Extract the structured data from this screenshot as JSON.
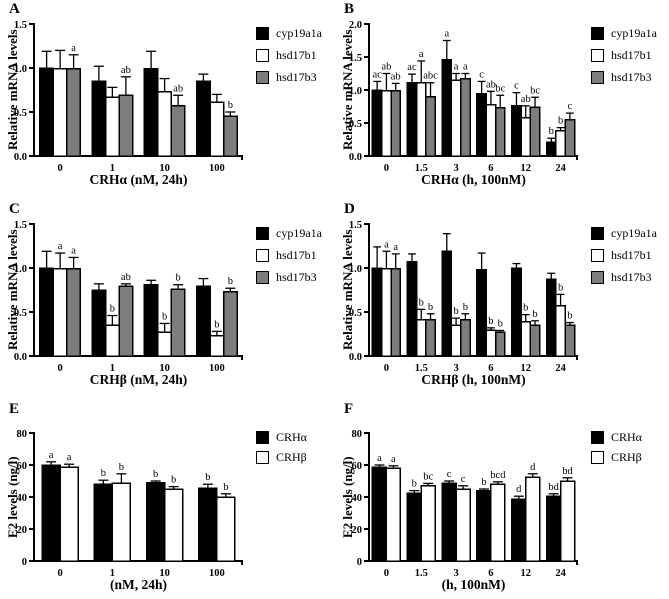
{
  "figure": {
    "background": "#ffffff"
  },
  "colors": {
    "bar_black": "#000000",
    "bar_white": "#ffffff",
    "bar_gray": "#7d7d7d",
    "axis": "#000000"
  },
  "chart_data": [
    {
      "panel": "A",
      "type": "bar",
      "xlabel": "CRHα (nM, 24h)",
      "ylabel": "Relative mRNA levels",
      "ylim": [
        0,
        1.5
      ],
      "yticks": [
        "0.0",
        "0.5",
        "1.0",
        "1.5"
      ],
      "categories": [
        "0",
        "1",
        "10",
        "100"
      ],
      "legend": [
        "cyp19a1a",
        "hsd17b1",
        "hsd17b3"
      ],
      "legend_position": "right",
      "series": [
        {
          "name": "cyp19a1a",
          "fill": "#000000",
          "values": [
            1.0,
            0.85,
            0.99,
            0.85
          ],
          "errors": [
            0.19,
            0.17,
            0.2,
            0.08
          ],
          "letters": [
            "",
            "",
            "",
            ""
          ]
        },
        {
          "name": "hsd17b1",
          "fill": "#ffffff",
          "values": [
            0.99,
            0.67,
            0.73,
            0.61
          ],
          "errors": [
            0.21,
            0.11,
            0.15,
            0.09
          ],
          "letters": [
            "",
            "",
            "",
            ""
          ]
        },
        {
          "name": "hsd17b3",
          "fill": "#7d7d7d",
          "values": [
            0.99,
            0.69,
            0.57,
            0.45
          ],
          "errors": [
            0.16,
            0.21,
            0.12,
            0.05
          ],
          "letters": [
            "a",
            "ab",
            "ab",
            "b"
          ]
        }
      ]
    },
    {
      "panel": "B",
      "type": "bar",
      "xlabel": "CRHα (h, 100nM)",
      "ylabel": "Relative mRNA levels",
      "ylim": [
        0,
        2.0
      ],
      "yticks": [
        "0.0",
        "0.5",
        "1.0",
        "1.5",
        "2.0"
      ],
      "categories": [
        "0",
        "1.5",
        "3",
        "6",
        "12",
        "24"
      ],
      "legend": [
        "cyp19a1a",
        "hsd17b1",
        "hsd17b3"
      ],
      "legend_position": "right",
      "series": [
        {
          "name": "cyp19a1a",
          "fill": "#000000",
          "values": [
            1.0,
            1.11,
            1.46,
            0.94,
            0.76,
            0.21
          ],
          "errors": [
            0.13,
            0.13,
            0.29,
            0.19,
            0.2,
            0.06
          ],
          "letters": [
            "ac",
            "ac",
            "a",
            "c",
            "c",
            "b"
          ]
        },
        {
          "name": "hsd17b1",
          "fill": "#ffffff",
          "values": [
            0.99,
            1.11,
            1.15,
            0.78,
            0.58,
            0.38
          ],
          "errors": [
            0.26,
            0.33,
            0.1,
            0.2,
            0.18,
            0.05
          ],
          "letters": [
            "ab",
            "a",
            "a",
            "ab",
            "ab",
            "b"
          ]
        },
        {
          "name": "hsd17b3",
          "fill": "#7d7d7d",
          "values": [
            0.99,
            0.9,
            1.17,
            0.73,
            0.74,
            0.55
          ],
          "errors": [
            0.11,
            0.21,
            0.08,
            0.19,
            0.15,
            0.1
          ],
          "letters": [
            "ab",
            "abc",
            "a",
            "bc",
            "bc",
            "c"
          ]
        }
      ]
    },
    {
      "panel": "C",
      "type": "bar",
      "xlabel": "CRHβ (nM, 24h)",
      "ylabel": "Relative mRNA levels",
      "ylim": [
        0,
        1.5
      ],
      "yticks": [
        "0.0",
        "0.5",
        "1.0",
        "1.5"
      ],
      "categories": [
        "0",
        "1",
        "10",
        "100"
      ],
      "legend": [
        "cyp19a1a",
        "hsd17b1",
        "hsd17b3"
      ],
      "legend_position": "right",
      "series": [
        {
          "name": "cyp19a1a",
          "fill": "#000000",
          "values": [
            1.0,
            0.75,
            0.81,
            0.79
          ],
          "errors": [
            0.19,
            0.07,
            0.05,
            0.09
          ],
          "letters": [
            "",
            "",
            "",
            ""
          ]
        },
        {
          "name": "hsd17b1",
          "fill": "#ffffff",
          "values": [
            0.99,
            0.35,
            0.27,
            0.23
          ],
          "errors": [
            0.18,
            0.11,
            0.1,
            0.05
          ],
          "letters": [
            "a",
            "b",
            "b",
            "b"
          ]
        },
        {
          "name": "hsd17b3",
          "fill": "#7d7d7d",
          "values": [
            0.99,
            0.79,
            0.76,
            0.73
          ],
          "errors": [
            0.13,
            0.03,
            0.05,
            0.04
          ],
          "letters": [
            "a",
            "ab",
            "b",
            "b"
          ]
        }
      ]
    },
    {
      "panel": "D",
      "type": "bar",
      "xlabel": "CRHβ (h, 100nM)",
      "ylabel": "Relative mRNA levels",
      "ylim": [
        0,
        1.5
      ],
      "yticks": [
        "0.0",
        "0.5",
        "1.0",
        "1.5"
      ],
      "categories": [
        "0",
        "1.5",
        "3",
        "6",
        "12",
        "24"
      ],
      "legend": [
        "cyp19a1a",
        "hsd17b1",
        "hsd17b3"
      ],
      "legend_position": "right",
      "series": [
        {
          "name": "cyp19a1a",
          "fill": "#000000",
          "values": [
            1.0,
            1.07,
            1.19,
            0.98,
            1.0,
            0.87
          ],
          "errors": [
            0.24,
            0.09,
            0.2,
            0.19,
            0.05,
            0.07
          ],
          "letters": [
            "",
            "",
            "",
            "",
            "",
            ""
          ]
        },
        {
          "name": "hsd17b1",
          "fill": "#ffffff",
          "values": [
            0.99,
            0.41,
            0.35,
            0.29,
            0.39,
            0.57
          ],
          "errors": [
            0.2,
            0.12,
            0.08,
            0.03,
            0.08,
            0.13
          ],
          "letters": [
            "a",
            "b",
            "b",
            "b",
            "b",
            "b"
          ]
        },
        {
          "name": "hsd17b3",
          "fill": "#7d7d7d",
          "values": [
            0.99,
            0.41,
            0.41,
            0.27,
            0.35,
            0.35
          ],
          "errors": [
            0.17,
            0.07,
            0.07,
            0.02,
            0.05,
            0.03
          ],
          "letters": [
            "a",
            "b",
            "b",
            "b",
            "b",
            "b"
          ]
        }
      ]
    },
    {
      "panel": "E",
      "type": "bar",
      "xlabel": "(nM, 24h)",
      "ylabel": "E2 levels (ng/l)",
      "ylim": [
        0,
        80
      ],
      "yticks": [
        "0",
        "20",
        "40",
        "60",
        "80"
      ],
      "categories": [
        "0",
        "1",
        "10",
        "100"
      ],
      "legend": [
        "CRHα",
        "CRHβ"
      ],
      "legend_position": "right",
      "series": [
        {
          "name": "CRHα",
          "fill": "#000000",
          "values": [
            60,
            48,
            49,
            45.5
          ],
          "errors": [
            2,
            2.5,
            1,
            2.5
          ],
          "letters": [
            "a",
            "b",
            "b",
            "b"
          ]
        },
        {
          "name": "CRHβ",
          "fill": "#ffffff",
          "values": [
            58.5,
            48.5,
            45,
            40
          ],
          "errors": [
            2,
            6,
            1.5,
            2
          ],
          "letters": [
            "a",
            "b",
            "b",
            "b"
          ]
        }
      ]
    },
    {
      "panel": "F",
      "type": "bar",
      "xlabel": "(h, 100nM)",
      "ylabel": "E2 levels (ng/l)",
      "ylim": [
        0,
        80
      ],
      "yticks": [
        "0",
        "20",
        "40",
        "60",
        "80"
      ],
      "categories": [
        "0",
        "1.5",
        "3",
        "6",
        "12",
        "24"
      ],
      "legend": [
        "CRHα",
        "CRHβ"
      ],
      "legend_position": "right",
      "series": [
        {
          "name": "CRHα",
          "fill": "#000000",
          "values": [
            58.5,
            42.5,
            48.5,
            44,
            38.5,
            40.5
          ],
          "errors": [
            1.5,
            1.5,
            1.5,
            1,
            2,
            1.5
          ],
          "letters": [
            "a",
            "b",
            "c",
            "b",
            "d",
            "bd"
          ]
        },
        {
          "name": "CRHβ",
          "fill": "#ffffff",
          "values": [
            58,
            47,
            45,
            48,
            52.5,
            50
          ],
          "errors": [
            1.5,
            1.5,
            2,
            1.5,
            2,
            2
          ],
          "letters": [
            "a",
            "bc",
            "c",
            "bcd",
            "d",
            "bd"
          ]
        }
      ]
    }
  ]
}
